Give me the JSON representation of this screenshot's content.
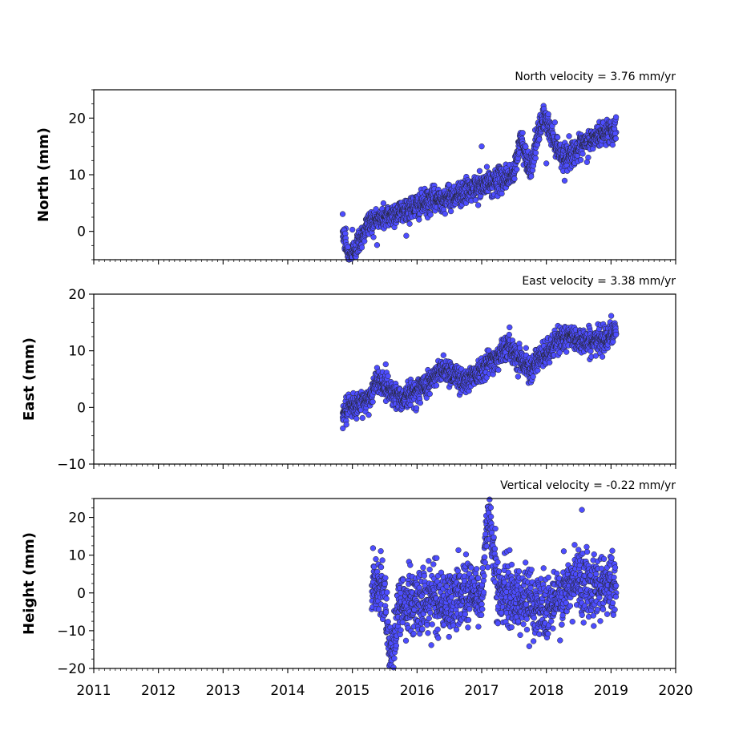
{
  "chart_data": [
    {
      "type": "scatter",
      "panel": "north",
      "title": "North velocity = 3.76 mm/yr",
      "ylabel": "North (mm)",
      "xlim": [
        2011,
        2020
      ],
      "ylim": [
        -5,
        25
      ],
      "yticks": [
        0,
        10,
        20
      ],
      "ytick_labels": [
        "0",
        "10",
        "20"
      ],
      "series": [
        {
          "color": "#4d4dff",
          "trend": {
            "x0": 2014.9,
            "y0": 0,
            "slope_mm_per_yr": 3.76
          },
          "x": [
            2014.85,
            2014.9,
            2015.0,
            2015.25,
            2015.5,
            2015.75,
            2016.0,
            2016.25,
            2016.5,
            2016.75,
            2017.0,
            2017.25,
            2017.5,
            2017.75,
            2018.0,
            2018.25,
            2018.5,
            2018.75,
            2019.0,
            2019.08,
            2017.95,
            2017.0,
            2017.6,
            2014.95
          ],
          "y": [
            0.0,
            0.5,
            0.3,
            1.5,
            2.5,
            3.5,
            4.5,
            5.5,
            6.0,
            7.0,
            8.0,
            9.0,
            10.0,
            11.0,
            12.0,
            13.0,
            14.5,
            16.5,
            18.0,
            17.5,
            20.5,
            15.0,
            16.5,
            -5.0
          ]
        }
      ]
    },
    {
      "type": "scatter",
      "panel": "east",
      "title": "East velocity = 3.38 mm/yr",
      "ylabel": "East (mm)",
      "xlim": [
        2011,
        2020
      ],
      "ylim": [
        -10,
        20
      ],
      "yticks": [
        -10,
        0,
        10,
        20
      ],
      "ytick_labels": [
        "−10",
        "0",
        "10",
        "20"
      ],
      "series": [
        {
          "color": "#4d4dff",
          "trend": {
            "x0": 2014.9,
            "y0": 0,
            "slope_mm_per_yr": 3.38
          },
          "x": [
            2014.85,
            2014.9,
            2015.0,
            2015.25,
            2015.4,
            2015.75,
            2016.0,
            2016.25,
            2016.4,
            2016.75,
            2017.0,
            2017.25,
            2017.4,
            2017.6,
            2017.75,
            2018.0,
            2018.25,
            2018.5,
            2018.75,
            2019.0,
            2019.08
          ],
          "y": [
            -1.0,
            -1.0,
            0.0,
            1.5,
            5.0,
            1.5,
            3.0,
            5.0,
            7.0,
            4.5,
            7.0,
            9.0,
            11.0,
            8.5,
            7.0,
            9.5,
            12.5,
            12.0,
            11.5,
            13.0,
            13.0
          ]
        }
      ]
    },
    {
      "type": "scatter",
      "panel": "vertical",
      "title": "Vertical velocity = -0.22 mm/yr",
      "ylabel": "Height (mm)",
      "xlim": [
        2011,
        2020
      ],
      "ylim": [
        -20,
        25
      ],
      "yticks": [
        -20,
        -10,
        0,
        10,
        20
      ],
      "ytick_labels": [
        "−20",
        "−10",
        "0",
        "10",
        "20"
      ],
      "series": [
        {
          "color": "#4d4dff",
          "trend": {
            "x0": 2015.3,
            "y0": 0,
            "slope_mm_per_yr": -0.22
          },
          "x": [
            2015.3,
            2015.5,
            2015.75,
            2016.0,
            2016.25,
            2016.5,
            2016.75,
            2017.0,
            2017.25,
            2017.5,
            2017.75,
            2018.0,
            2018.25,
            2018.5,
            2018.75,
            2019.0,
            2019.08,
            2017.12,
            2018.55,
            2015.6
          ],
          "y": [
            2.0,
            0.0,
            -2.0,
            -3.0,
            -1.0,
            -3.0,
            1.0,
            -1.0,
            0.0,
            -1.0,
            -2.0,
            -4.0,
            -1.0,
            4.0,
            2.0,
            3.0,
            0.0,
            23.0,
            22.0,
            -17.0
          ]
        }
      ]
    }
  ],
  "xaxis": {
    "ticks": [
      2011,
      2012,
      2013,
      2014,
      2015,
      2016,
      2017,
      2018,
      2019,
      2020
    ],
    "tick_labels": [
      "2011",
      "2012",
      "2013",
      "2014",
      "2015",
      "2016",
      "2017",
      "2018",
      "2019",
      "2020"
    ]
  }
}
